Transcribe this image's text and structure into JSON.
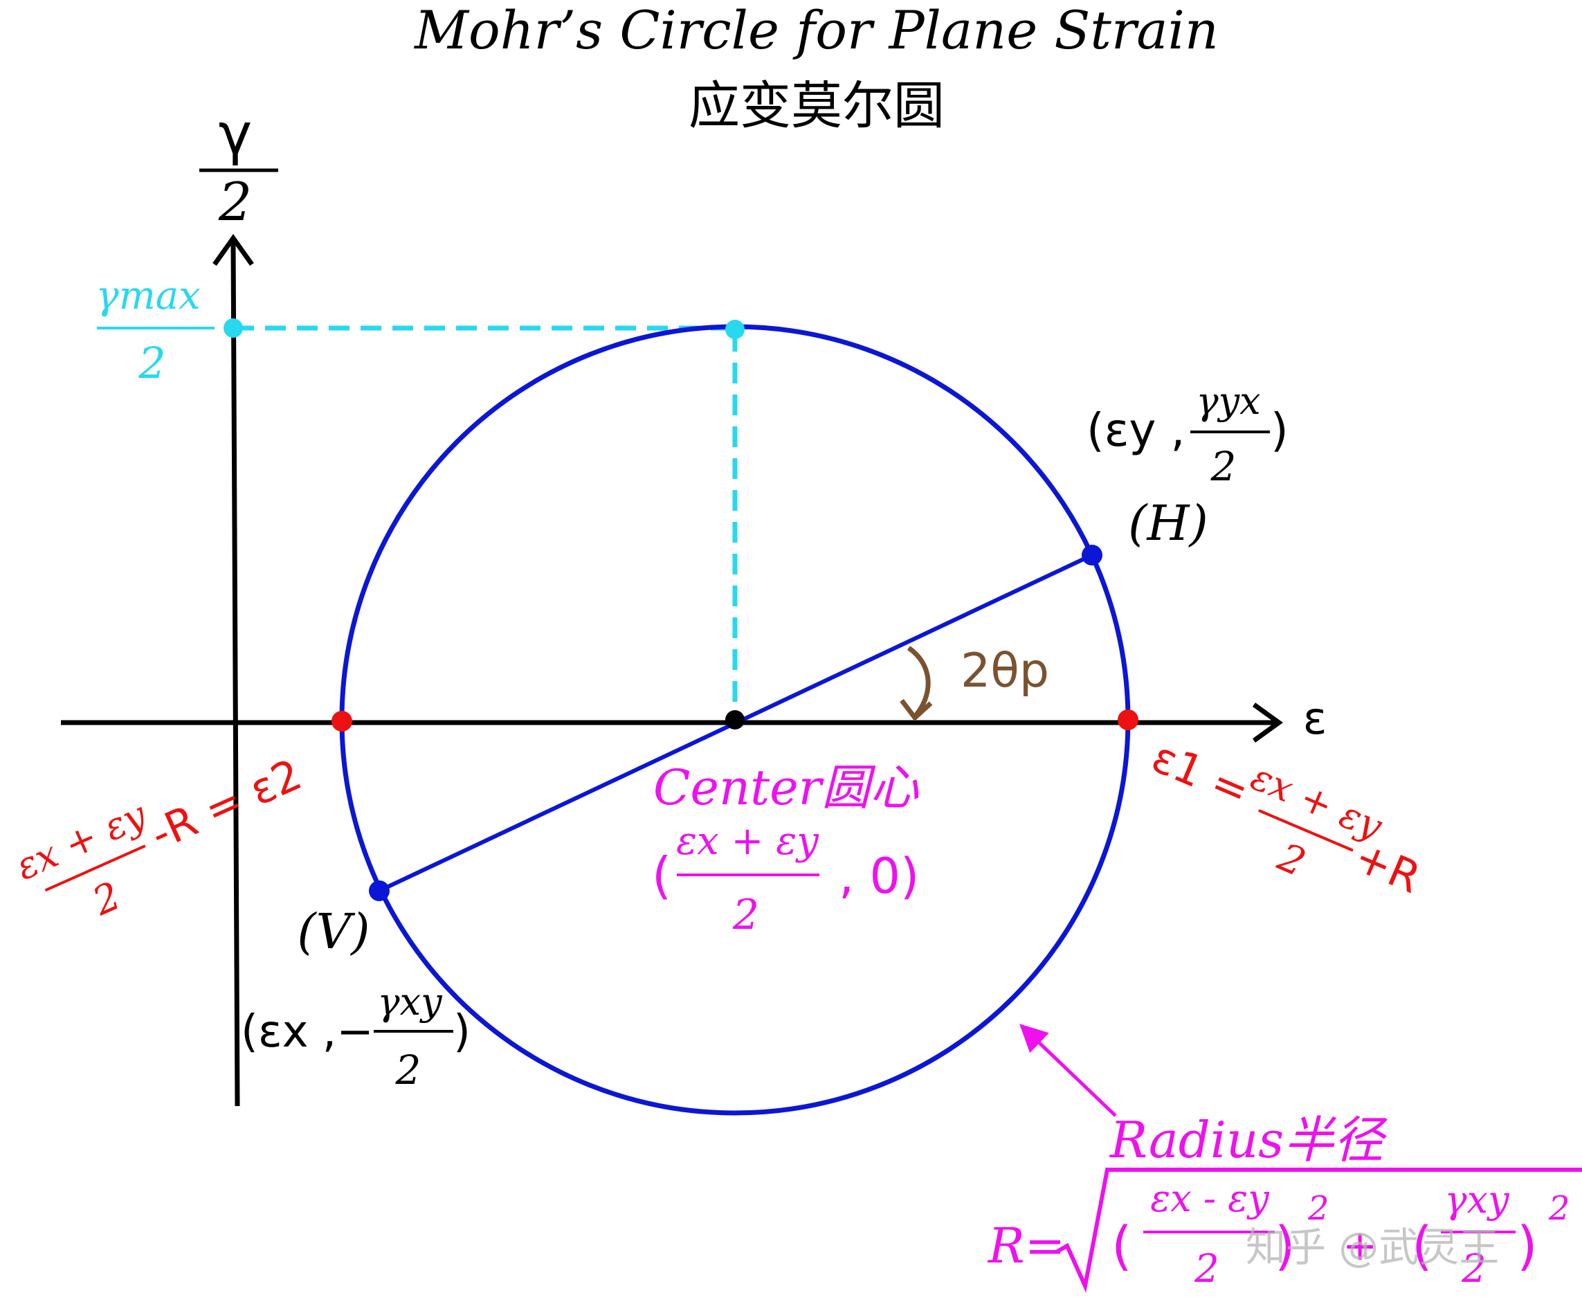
{
  "title": {
    "en": "Mohr’s Circle for Plane Strain",
    "zh": "应变莫尔圆"
  },
  "axes": {
    "y_label_top": "γ",
    "y_label_bottom": "2",
    "x_label": "ε"
  },
  "gamma_max": {
    "numerator": "γmax",
    "denominator": "2"
  },
  "point_H": {
    "coord_left": "(εy ,",
    "frac_num": "γyx",
    "frac_den": "2",
    "coord_right": ")",
    "label": "(H)"
  },
  "point_V": {
    "label": "(V)",
    "coord_left": "(εx ,−",
    "frac_num": "γxy",
    "frac_den": "2",
    "coord_right": ")"
  },
  "angle": {
    "label": "2θp"
  },
  "center": {
    "label": "Center圆心",
    "coord_open": "(",
    "frac_num": "εx + εy",
    "frac_den": "2",
    "coord_rest": ", 0)"
  },
  "eps1": {
    "label": "ε1 =",
    "frac_num": "εx + εy",
    "frac_den": "2",
    "suffix": "+R"
  },
  "eps2": {
    "label": "-R = ε2",
    "frac_num": "εx + εy",
    "frac_den": "2"
  },
  "radius": {
    "label": "Radius半径",
    "formula_prefix": "R=",
    "term1_num": "εx - εy",
    "term1_den": "2",
    "term2_num": "γxy",
    "term2_den": "2",
    "exponent": "2",
    "plus": "+"
  },
  "watermark": "知乎 @武灵王",
  "colors": {
    "circle": "#0b16d6",
    "cyan": "#27d9ee",
    "red": "#ee1111",
    "magenta": "#ee11ee",
    "brown": "#7b5230",
    "black": "#000000"
  }
}
